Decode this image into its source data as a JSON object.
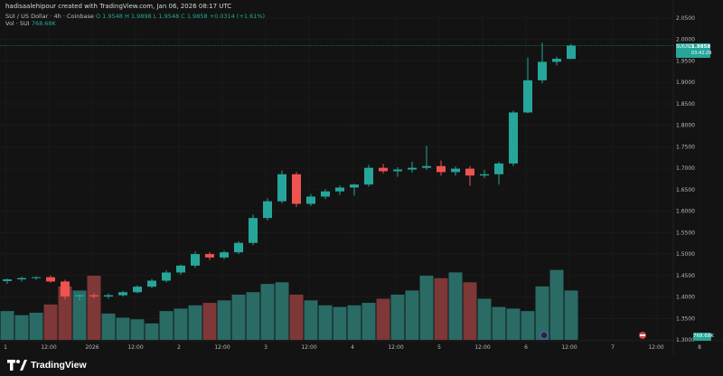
{
  "header": {
    "credit": "hadisaalehipour created with TradingView.com, Jan 06, 2026 08:17 UTC",
    "legend_prefix": "SUI / US Dollar · 4h · Coinbase",
    "ohlc": "O 1.9548  H 1.9898  L 1.9548  C 1.9858  +0.0314 (+1.61%)",
    "vol_label": "Vol · SUI",
    "vol_value": "768.68K"
  },
  "price_tag": {
    "symbol": "SUIUSD",
    "price": "1.9858",
    "countdown": "03:42:29"
  },
  "vol_tag": "768.68K",
  "brand": {
    "name": "TradingView"
  },
  "colors": {
    "up": "#26a69a",
    "down": "#ef5350",
    "vol_up": "#2a6b65",
    "vol_down": "#7e3837",
    "background": "#131313",
    "grid": "#1e1e1e"
  },
  "chart_data": {
    "type": "candlestick",
    "interval": "4h",
    "symbol": "SUI / US Dollar",
    "exchange": "Coinbase",
    "ylim": [
      1.3,
      2.05
    ],
    "y_ticks": [
      "2.0500",
      "2.0000",
      "1.9500",
      "1.9000",
      "1.8500",
      "1.8000",
      "1.7500",
      "1.7000",
      "1.6500",
      "1.6000",
      "1.5500",
      "1.5000",
      "1.4500",
      "1.4000",
      "1.3500",
      "1.3000"
    ],
    "y_tick_values": [
      2.05,
      2.0,
      1.95,
      1.9,
      1.85,
      1.8,
      1.75,
      1.7,
      1.65,
      1.6,
      1.55,
      1.5,
      1.45,
      1.4,
      1.35,
      1.3
    ],
    "x_ticks": [
      {
        "label": "1",
        "i": 0
      },
      {
        "label": "12:00",
        "i": 3
      },
      {
        "label": "2026",
        "i": 6
      },
      {
        "label": "12:00",
        "i": 9
      },
      {
        "label": "2",
        "i": 12
      },
      {
        "label": "12:00",
        "i": 15
      },
      {
        "label": "3",
        "i": 18
      },
      {
        "label": "12:00",
        "i": 21
      },
      {
        "label": "4",
        "i": 24
      },
      {
        "label": "12:00",
        "i": 27
      },
      {
        "label": "5",
        "i": 30
      },
      {
        "label": "12:00",
        "i": 33
      },
      {
        "label": "6",
        "i": 36
      },
      {
        "label": "12:00",
        "i": 39
      },
      {
        "label": "7",
        "i": 42
      },
      {
        "label": "12:00",
        "i": 45
      },
      {
        "label": "8",
        "i": 48
      }
    ],
    "ohlc": [
      [
        1.437,
        1.443,
        1.431,
        1.441
      ],
      [
        1.441,
        1.447,
        1.436,
        1.444
      ],
      [
        1.444,
        1.448,
        1.44,
        1.446
      ],
      [
        1.446,
        1.45,
        1.433,
        1.436
      ],
      [
        1.436,
        1.44,
        1.394,
        1.401
      ],
      [
        1.401,
        1.406,
        1.391,
        1.404
      ],
      [
        1.404,
        1.409,
        1.396,
        1.401
      ],
      [
        1.401,
        1.408,
        1.396,
        1.404
      ],
      [
        1.404,
        1.414,
        1.401,
        1.411
      ],
      [
        1.411,
        1.427,
        1.409,
        1.424
      ],
      [
        1.424,
        1.442,
        1.42,
        1.438
      ],
      [
        1.438,
        1.462,
        1.434,
        1.457
      ],
      [
        1.457,
        1.475,
        1.452,
        1.473
      ],
      [
        1.473,
        1.506,
        1.468,
        1.5
      ],
      [
        1.5,
        1.505,
        1.486,
        1.492
      ],
      [
        1.492,
        1.508,
        1.488,
        1.504
      ],
      [
        1.504,
        1.53,
        1.5,
        1.526
      ],
      [
        1.526,
        1.592,
        1.521,
        1.584
      ],
      [
        1.584,
        1.63,
        1.578,
        1.623
      ],
      [
        1.623,
        1.695,
        1.618,
        1.686
      ],
      [
        1.686,
        1.691,
        1.61,
        1.617
      ],
      [
        1.617,
        1.64,
        1.612,
        1.634
      ],
      [
        1.634,
        1.651,
        1.628,
        1.646
      ],
      [
        1.646,
        1.66,
        1.638,
        1.655
      ],
      [
        1.655,
        1.664,
        1.636,
        1.662
      ],
      [
        1.662,
        1.708,
        1.657,
        1.701
      ],
      [
        1.701,
        1.71,
        1.688,
        1.693
      ],
      [
        1.693,
        1.702,
        1.68,
        1.697
      ],
      [
        1.697,
        1.715,
        1.69,
        1.701
      ],
      [
        1.701,
        1.752,
        1.696,
        1.705
      ],
      [
        1.705,
        1.718,
        1.683,
        1.691
      ],
      [
        1.691,
        1.704,
        1.683,
        1.699
      ],
      [
        1.699,
        1.705,
        1.659,
        1.683
      ],
      [
        1.683,
        1.696,
        1.677,
        1.686
      ],
      [
        1.686,
        1.715,
        1.662,
        1.711
      ],
      [
        1.711,
        1.834,
        1.705,
        1.83
      ],
      [
        1.83,
        1.958,
        1.828,
        1.905
      ],
      [
        1.905,
        1.992,
        1.898,
        1.948
      ],
      [
        1.948,
        1.96,
        1.94,
        1.955
      ],
      [
        1.9548,
        1.9898,
        1.9548,
        1.9858
      ]
    ],
    "volume_scale_max": 100,
    "volume": [
      35,
      30,
      33,
      43,
      65,
      60,
      78,
      32,
      27,
      25,
      20,
      35,
      38,
      42,
      45,
      48,
      55,
      58,
      68,
      70,
      55,
      48,
      42,
      40,
      42,
      45,
      50,
      55,
      60,
      78,
      75,
      82,
      70,
      50,
      40,
      38,
      35,
      65,
      85,
      60
    ]
  }
}
